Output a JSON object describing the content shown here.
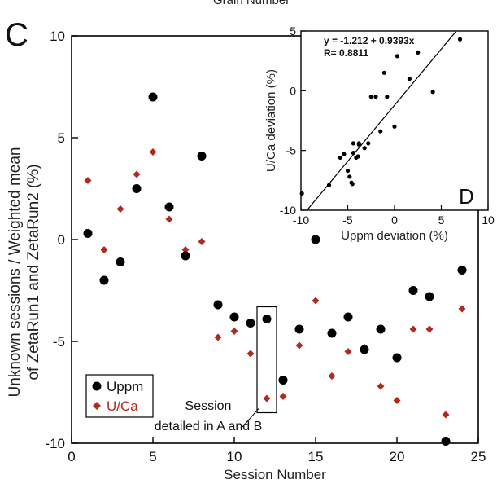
{
  "header_cut": "Grain Number",
  "chart_data": [
    {
      "panel": "C",
      "type": "scatter",
      "xlabel": "Session Number",
      "ylabel_lines": [
        "Unknown sessions / Weighted mean",
        "of ZetaRun1 and ZetaRun2 (%)"
      ],
      "xlim": [
        0,
        25
      ],
      "ylim": [
        -10,
        10
      ],
      "xticks": [
        0,
        5,
        10,
        15,
        20,
        25
      ],
      "yticks": [
        -10,
        -5,
        0,
        5,
        10
      ],
      "legend_position": "bottom-left",
      "series": [
        {
          "name": "Uppm",
          "marker": "circle",
          "color": "#000000",
          "x": [
            1,
            2,
            3,
            4,
            5,
            6,
            7,
            8,
            9,
            10,
            11,
            12,
            13,
            14,
            15,
            16,
            17,
            18,
            19,
            20,
            21,
            22,
            23,
            24
          ],
          "y": [
            0.3,
            -2.0,
            -1.1,
            2.5,
            7.0,
            1.6,
            -0.8,
            4.1,
            -3.2,
            -3.8,
            -4.1,
            -3.9,
            -6.9,
            -4.4,
            0.0,
            -4.6,
            -3.8,
            -5.4,
            -4.4,
            -5.8,
            -2.5,
            -2.8,
            -9.9,
            -1.5
          ]
        },
        {
          "name": "U/Ca",
          "marker": "diamond",
          "color": "#b22a1e",
          "x": [
            1,
            2,
            3,
            4,
            5,
            6,
            7,
            8,
            9,
            10,
            11,
            12,
            13,
            14,
            15,
            16,
            17,
            18,
            19,
            20,
            21,
            22,
            23,
            24
          ],
          "y": [
            2.9,
            -0.5,
            1.5,
            3.2,
            4.3,
            1.0,
            -0.5,
            -0.1,
            -4.8,
            -4.5,
            -5.6,
            -7.8,
            -7.7,
            -5.2,
            -3.0,
            -6.7,
            -5.5,
            -5.3,
            -7.2,
            -7.9,
            -4.4,
            -4.4,
            -8.6,
            -3.4
          ]
        }
      ],
      "annotation": {
        "text_lines": [
          "Session",
          "detailed in A and B"
        ],
        "session": 12
      }
    },
    {
      "panel": "D",
      "type": "scatter",
      "xlabel": "Uppm deviation (%)",
      "ylabel": "U/Ca deviation (%)",
      "xlim": [
        -10,
        10
      ],
      "ylim": [
        -10,
        5
      ],
      "xticks": [
        -10,
        -5,
        0,
        5,
        10
      ],
      "yticks": [
        -10,
        -5,
        0,
        5
      ],
      "equation": "y = -1.212 + 0.9393x",
      "r_text": "R= 0.8811",
      "fit": {
        "intercept": -1.212,
        "slope": 0.9393
      },
      "x": [
        -9.9,
        -7.0,
        -5.8,
        -5.4,
        -5.0,
        -4.8,
        -4.6,
        -4.5,
        -4.4,
        -4.4,
        -4.1,
        -3.9,
        -3.8,
        -3.8,
        -3.2,
        -2.8,
        -2.5,
        -2.0,
        -1.5,
        -1.1,
        -0.8,
        0.0,
        0.3,
        1.6,
        2.5,
        4.1,
        7.0
      ],
      "y": [
        -8.6,
        -7.9,
        -5.6,
        -5.3,
        -6.7,
        -7.2,
        -7.7,
        -7.8,
        -4.4,
        -5.2,
        -5.6,
        -5.5,
        -4.5,
        -4.4,
        -4.8,
        -4.4,
        -0.5,
        -0.5,
        -3.4,
        1.5,
        -0.5,
        -3.0,
        2.9,
        1.0,
        3.2,
        -0.1,
        4.3
      ]
    }
  ]
}
